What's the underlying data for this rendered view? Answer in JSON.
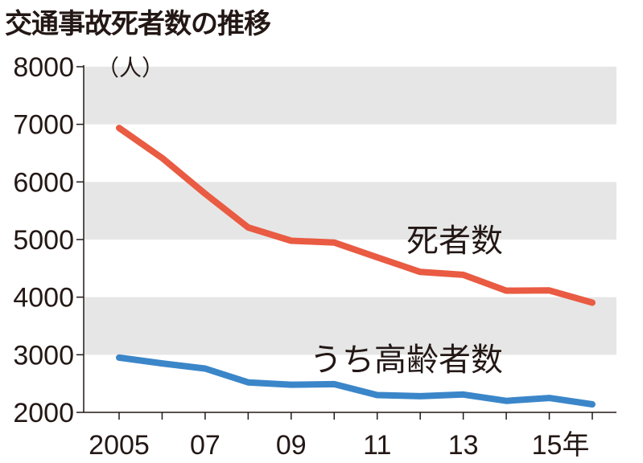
{
  "chart_data": {
    "type": "line",
    "title": "交通事故死者数の推移",
    "y_unit": "（人）",
    "x_tick_labels": [
      "2005",
      "07",
      "09",
      "11",
      "13",
      "15年"
    ],
    "x": [
      2005,
      2006,
      2007,
      2008,
      2009,
      2010,
      2011,
      2012,
      2013,
      2014,
      2015,
      2016
    ],
    "xlim": [
      2005,
      2016
    ],
    "ylim": [
      2000,
      8000
    ],
    "y_ticks": [
      2000,
      3000,
      4000,
      5000,
      6000,
      7000,
      8000
    ],
    "band_color": "#e6e6e6",
    "grid": false,
    "series": [
      {
        "name": "死者数",
        "color": "#e95b42",
        "values": [
          6937,
          6415,
          5796,
          5209,
          4979,
          4948,
          4691,
          4438,
          4388,
          4113,
          4117,
          3904
        ]
      },
      {
        "name": "うち高齢者数",
        "color": "#3b86c9",
        "values": [
          2950,
          2850,
          2760,
          2520,
          2480,
          2490,
          2300,
          2280,
          2310,
          2200,
          2250,
          2140
        ]
      }
    ]
  }
}
